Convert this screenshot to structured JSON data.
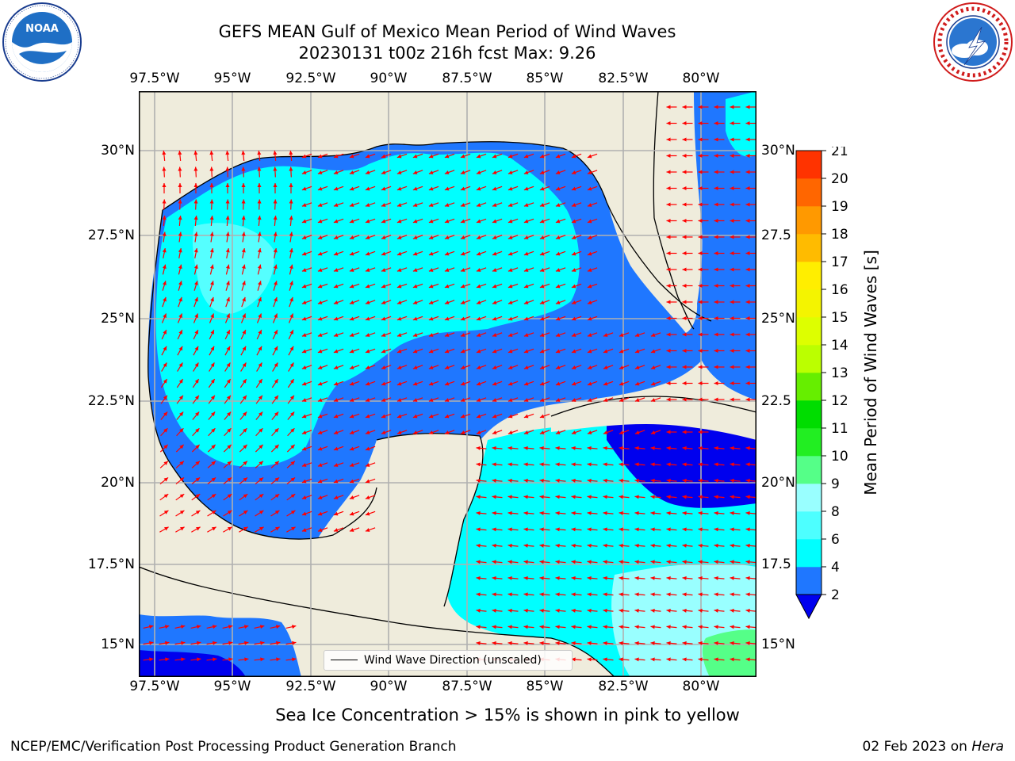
{
  "header": {
    "title_line1": "GEFS MEAN Gulf of Mexico Mean Period of Wind Waves",
    "title_line2": "20230131 t00z 216h fcst   Max: 9.26"
  },
  "logos": {
    "noaa_text": "NOAA",
    "noaa_ring_text": "NATIONAL OCEANIC AND ATMOSPHERIC ADMINISTRATION · U.S. DEPARTMENT OF COMMERCE",
    "nws_ring_text": "NATIONAL WEATHER SERVICE"
  },
  "axes": {
    "lon_ticks": [
      "97.5°W",
      "95°W",
      "92.5°W",
      "90°W",
      "87.5°W",
      "85°W",
      "82.5°W",
      "80°W"
    ],
    "lat_ticks_left": [
      "30°N",
      "27.5°N",
      "25°N",
      "22.5°N",
      "20°N",
      "17.5°N",
      "15°N"
    ],
    "lat_ticks_right": [
      "30°N",
      "27.5",
      "25°N",
      "22.5",
      "20°N",
      "17.5",
      "15°N"
    ]
  },
  "legend": {
    "label": "Wind Wave Direction (unscaled)"
  },
  "colorbar": {
    "label": "Mean Period of Wind Waves [s]",
    "ticks": [
      "2",
      "4",
      "6",
      "8",
      "9",
      "10",
      "11",
      "12",
      "13",
      "14",
      "15",
      "16",
      "17",
      "18",
      "19",
      "20",
      "21"
    ],
    "colors": [
      "#1f77ff",
      "#00ffff",
      "#4dffff",
      "#99ffff",
      "#55ff88",
      "#22ee22",
      "#00dd00",
      "#66ee00",
      "#bbff00",
      "#ddff00",
      "#f4f400",
      "#ffee00",
      "#ffbb00",
      "#ff9900",
      "#ff6600",
      "#ff3300"
    ],
    "under_color": "#0000ee"
  },
  "caption": "Sea Ice Concentration > 15% is shown in pink to yellow",
  "footer": {
    "left": "NCEP/EMC/Verification Post Processing Product Generation Branch",
    "right_date": "02 Feb 2023 on ",
    "right_host": "Hera"
  },
  "map_colors": {
    "land": "#efecdc",
    "grid": "#b0b0b0",
    "arrow": "#ff0000",
    "coast": "#000000",
    "water_deep_blue": "#0000ee",
    "water_blue": "#1f77ff",
    "water_cyan": "#00ffff",
    "water_light": "#55ffff",
    "water_pale": "#99ffff",
    "water_green": "#55ff88"
  }
}
